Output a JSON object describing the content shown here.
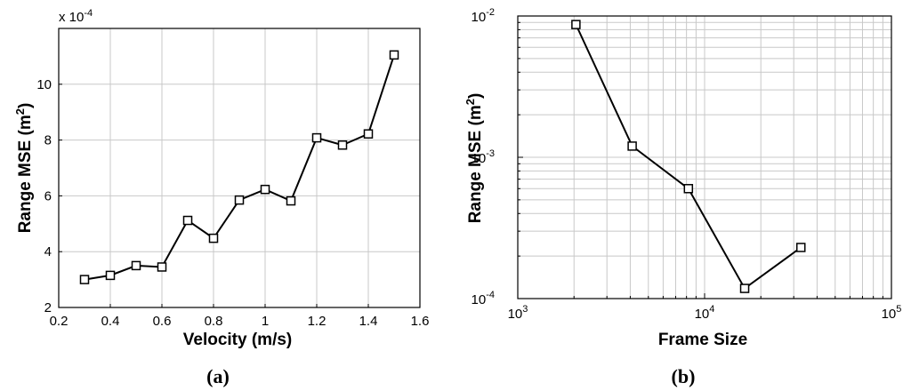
{
  "chart_data": [
    {
      "type": "line",
      "panel_label": "a",
      "xlabel": "Velocity (m/s)",
      "ylabel": "Range MSE (m",
      "ylabel_sup": "2",
      "ylabel_end": ")",
      "y_multiplier": "x 10",
      "y_multiplier_exp": "-4",
      "xlim": [
        0.2,
        1.6
      ],
      "ylim": [
        2,
        12
      ],
      "x_ticks": [
        "0.2",
        "0.4",
        "0.6",
        "0.8",
        "1",
        "1.2",
        "1.4",
        "1.6"
      ],
      "y_ticks": [
        "2",
        "4",
        "6",
        "8",
        "10"
      ],
      "grid": true,
      "marker": "square",
      "x": [
        0.3,
        0.4,
        0.5,
        0.6,
        0.7,
        0.8,
        0.9,
        1.0,
        1.1,
        1.2,
        1.3,
        1.4,
        1.5
      ],
      "values": [
        3.0,
        3.15,
        3.5,
        3.45,
        5.12,
        4.48,
        5.85,
        6.23,
        5.82,
        8.08,
        7.82,
        8.22,
        11.05
      ]
    },
    {
      "type": "line",
      "panel_label": "b",
      "xlabel": "Frame Size",
      "ylabel": "Range MSE (m",
      "ylabel_sup": "2",
      "ylabel_end": ")",
      "x_scale": "log",
      "y_scale": "log",
      "xlim": [
        1000,
        100000
      ],
      "ylim": [
        0.0001,
        0.01
      ],
      "x_ticks": [
        {
          "base": "10",
          "exp": "3"
        },
        {
          "base": "10",
          "exp": "4"
        },
        {
          "base": "10",
          "exp": "5"
        }
      ],
      "y_ticks": [
        {
          "base": "10",
          "exp": "-4"
        },
        {
          "base": "10",
          "exp": "-3"
        },
        {
          "base": "10",
          "exp": "-2"
        }
      ],
      "grid": true,
      "marker": "square",
      "x": [
        2048,
        4096,
        8192,
        16384,
        32768
      ],
      "values": [
        0.0087,
        0.0012,
        0.0006,
        0.000118,
        0.00023
      ]
    }
  ]
}
